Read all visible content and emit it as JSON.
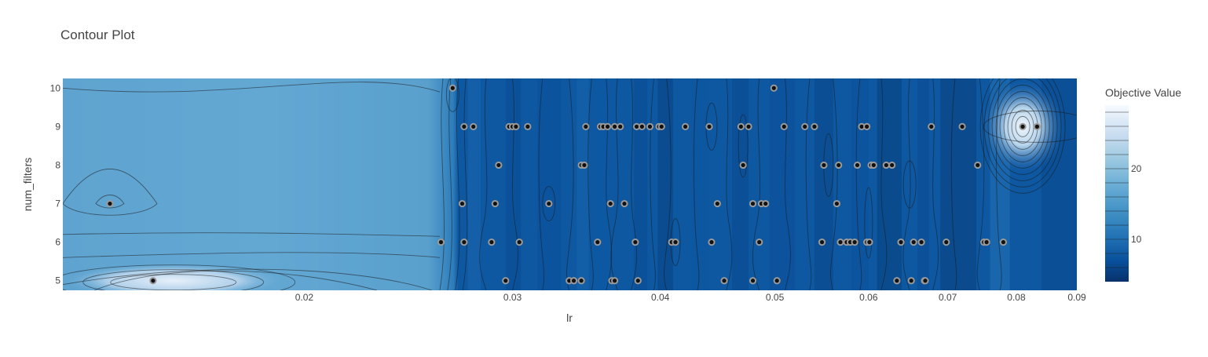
{
  "chart_data": {
    "type": "contour",
    "title": "Contour Plot",
    "xlabel": "lr",
    "ylabel": "num_filters",
    "x_scale": "log",
    "xlim": [
      0.0125,
      0.09
    ],
    "ylim": [
      4.75,
      10.25
    ],
    "x_ticks": [
      0.02,
      0.03,
      0.04,
      0.05,
      0.06,
      0.07,
      0.08,
      0.09
    ],
    "x_tick_labels": [
      "0.02",
      "0.03",
      "0.04",
      "0.05",
      "0.06",
      "0.07",
      "0.08",
      "0.09"
    ],
    "y_ticks": [
      5,
      6,
      7,
      8,
      9,
      10
    ],
    "y_tick_labels": [
      "5",
      "6",
      "7",
      "8",
      "9",
      "10"
    ],
    "colorbar": {
      "title": "Objective Value",
      "range": [
        4,
        29
      ],
      "ticks": [
        10,
        20
      ],
      "tick_labels": [
        "10",
        "20"
      ],
      "colorscale": [
        "#08306b",
        "#08519c",
        "#2171b5",
        "#4292c6",
        "#6baed6",
        "#9ecae1",
        "#c6dbef",
        "#deebf7",
        "#f7fbff"
      ]
    },
    "points": [
      {
        "x": 0.0267,
        "y": 10
      },
      {
        "x": 0.0499,
        "y": 10
      },
      {
        "x": 0.0273,
        "y": 9
      },
      {
        "x": 0.0278,
        "y": 9
      },
      {
        "x": 0.0298,
        "y": 9
      },
      {
        "x": 0.03,
        "y": 9
      },
      {
        "x": 0.0302,
        "y": 9
      },
      {
        "x": 0.0309,
        "y": 9
      },
      {
        "x": 0.0346,
        "y": 9
      },
      {
        "x": 0.0356,
        "y": 9
      },
      {
        "x": 0.0358,
        "y": 9
      },
      {
        "x": 0.0361,
        "y": 9
      },
      {
        "x": 0.0366,
        "y": 9
      },
      {
        "x": 0.037,
        "y": 9
      },
      {
        "x": 0.0382,
        "y": 9
      },
      {
        "x": 0.0386,
        "y": 9
      },
      {
        "x": 0.0392,
        "y": 9
      },
      {
        "x": 0.0399,
        "y": 9
      },
      {
        "x": 0.0401,
        "y": 9
      },
      {
        "x": 0.042,
        "y": 9
      },
      {
        "x": 0.044,
        "y": 9
      },
      {
        "x": 0.0468,
        "y": 9
      },
      {
        "x": 0.0475,
        "y": 9
      },
      {
        "x": 0.0509,
        "y": 9
      },
      {
        "x": 0.053,
        "y": 9
      },
      {
        "x": 0.054,
        "y": 9
      },
      {
        "x": 0.0592,
        "y": 9
      },
      {
        "x": 0.0598,
        "y": 9
      },
      {
        "x": 0.0678,
        "y": 9
      },
      {
        "x": 0.072,
        "y": 9
      },
      {
        "x": 0.081,
        "y": 9
      },
      {
        "x": 0.0833,
        "y": 9
      },
      {
        "x": 0.0292,
        "y": 8
      },
      {
        "x": 0.0343,
        "y": 8
      },
      {
        "x": 0.0345,
        "y": 8
      },
      {
        "x": 0.047,
        "y": 8
      },
      {
        "x": 0.055,
        "y": 8
      },
      {
        "x": 0.0566,
        "y": 8
      },
      {
        "x": 0.0587,
        "y": 8
      },
      {
        "x": 0.0603,
        "y": 8
      },
      {
        "x": 0.0606,
        "y": 8
      },
      {
        "x": 0.0621,
        "y": 8
      },
      {
        "x": 0.0628,
        "y": 8
      },
      {
        "x": 0.0742,
        "y": 8
      },
      {
        "x": 0.0137,
        "y": 7
      },
      {
        "x": 0.0272,
        "y": 7
      },
      {
        "x": 0.029,
        "y": 7
      },
      {
        "x": 0.0322,
        "y": 7
      },
      {
        "x": 0.0363,
        "y": 7
      },
      {
        "x": 0.0373,
        "y": 7
      },
      {
        "x": 0.0447,
        "y": 7
      },
      {
        "x": 0.0479,
        "y": 7
      },
      {
        "x": 0.0487,
        "y": 7
      },
      {
        "x": 0.0491,
        "y": 7
      },
      {
        "x": 0.0564,
        "y": 7
      },
      {
        "x": 0.0261,
        "y": 6
      },
      {
        "x": 0.0273,
        "y": 6
      },
      {
        "x": 0.0288,
        "y": 6
      },
      {
        "x": 0.0304,
        "y": 6
      },
      {
        "x": 0.0354,
        "y": 6
      },
      {
        "x": 0.0381,
        "y": 6
      },
      {
        "x": 0.0409,
        "y": 6
      },
      {
        "x": 0.0412,
        "y": 6
      },
      {
        "x": 0.0442,
        "y": 6
      },
      {
        "x": 0.0485,
        "y": 6
      },
      {
        "x": 0.0548,
        "y": 6
      },
      {
        "x": 0.0568,
        "y": 6
      },
      {
        "x": 0.0575,
        "y": 6
      },
      {
        "x": 0.0579,
        "y": 6
      },
      {
        "x": 0.0584,
        "y": 6
      },
      {
        "x": 0.0598,
        "y": 6
      },
      {
        "x": 0.0601,
        "y": 6
      },
      {
        "x": 0.0639,
        "y": 6
      },
      {
        "x": 0.0655,
        "y": 6
      },
      {
        "x": 0.0665,
        "y": 6
      },
      {
        "x": 0.0698,
        "y": 6
      },
      {
        "x": 0.0751,
        "y": 6
      },
      {
        "x": 0.0755,
        "y": 6
      },
      {
        "x": 0.078,
        "y": 6
      },
      {
        "x": 0.0149,
        "y": 5
      },
      {
        "x": 0.0296,
        "y": 5
      },
      {
        "x": 0.0335,
        "y": 5
      },
      {
        "x": 0.0338,
        "y": 5
      },
      {
        "x": 0.0343,
        "y": 5
      },
      {
        "x": 0.0364,
        "y": 5
      },
      {
        "x": 0.0366,
        "y": 5
      },
      {
        "x": 0.0383,
        "y": 5
      },
      {
        "x": 0.0453,
        "y": 5
      },
      {
        "x": 0.0479,
        "y": 5
      },
      {
        "x": 0.0502,
        "y": 5
      },
      {
        "x": 0.0634,
        "y": 5
      },
      {
        "x": 0.0652,
        "y": 5
      },
      {
        "x": 0.0669,
        "y": 5
      },
      {
        "x": 0.067,
        "y": 5
      }
    ]
  }
}
